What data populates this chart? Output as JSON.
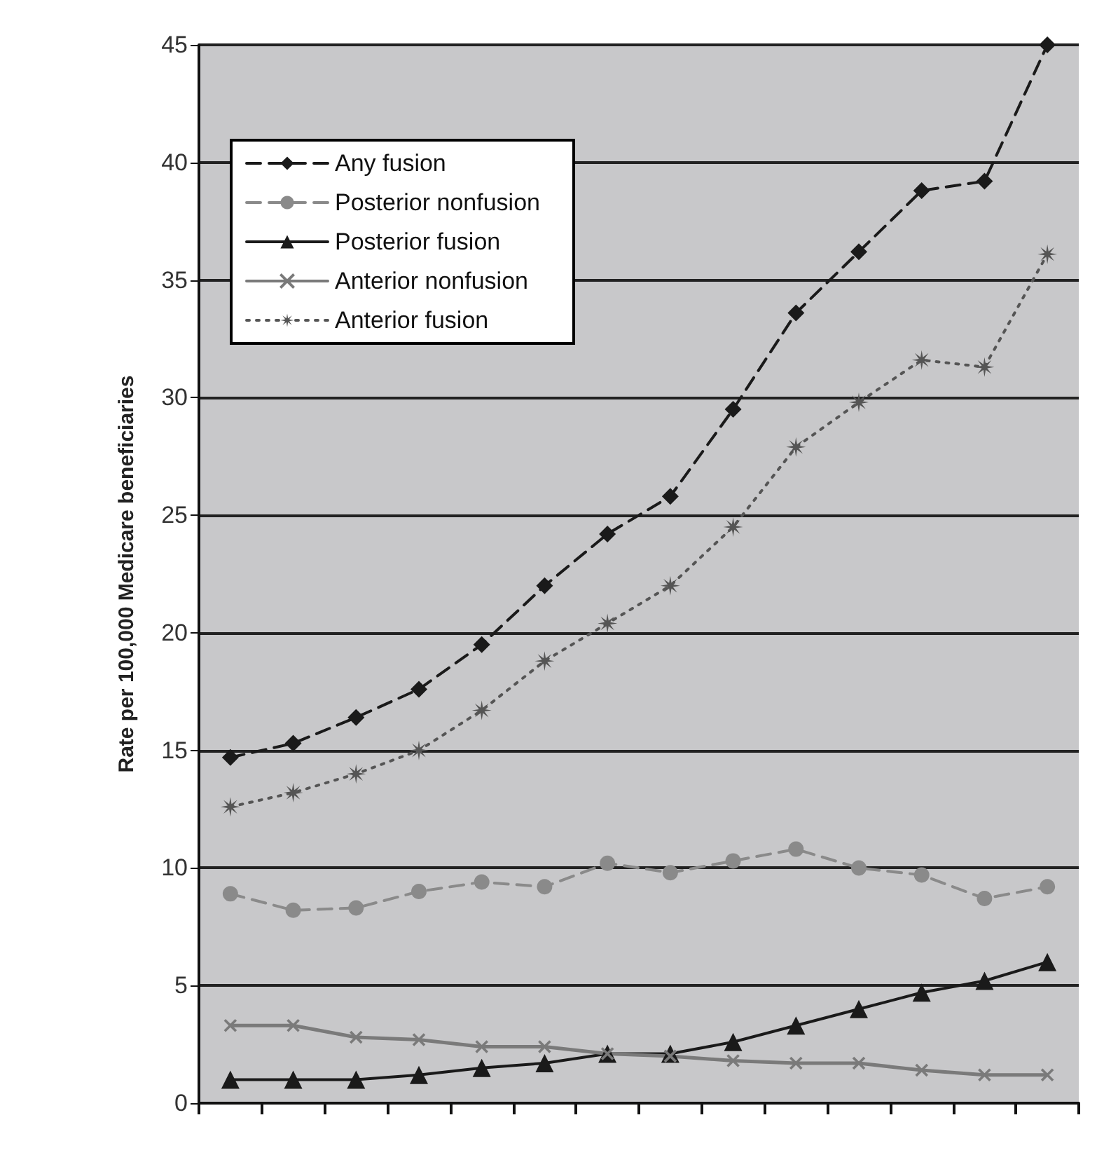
{
  "chart_data": {
    "type": "line",
    "ylabel": "Rate per 100,000 Medicare beneficiaries",
    "categories": [
      null,
      null,
      null,
      null,
      null,
      null,
      null,
      null,
      null,
      null,
      null,
      null,
      null,
      null
    ],
    "series": [
      {
        "name": "Any fusion",
        "color": "#1a1a1a",
        "marker": "diamond",
        "line_style": "dashed",
        "values": [
          14.7,
          15.3,
          16.4,
          17.6,
          19.5,
          22.0,
          24.2,
          25.8,
          29.5,
          33.6,
          36.2,
          38.8,
          39.2,
          45.0
        ]
      },
      {
        "name": "Posterior nonfusion",
        "color": "#8a8a8a",
        "marker": "circle",
        "line_style": "dashed",
        "values": [
          8.9,
          8.2,
          8.3,
          9.0,
          9.4,
          9.2,
          10.2,
          9.8,
          10.3,
          10.8,
          10.0,
          9.7,
          8.7,
          9.2
        ]
      },
      {
        "name": "Posterior fusion",
        "color": "#1a1a1a",
        "marker": "triangle",
        "line_style": "solid",
        "values": [
          1.0,
          1.0,
          1.0,
          1.2,
          1.5,
          1.7,
          2.1,
          2.1,
          2.6,
          3.3,
          4.0,
          4.7,
          5.2,
          6.0
        ]
      },
      {
        "name": "Anterior nonfusion",
        "color": "#7a7a7a",
        "marker": "cross",
        "line_style": "solid",
        "values": [
          3.3,
          3.3,
          2.8,
          2.7,
          2.4,
          2.4,
          2.1,
          2.0,
          1.8,
          1.7,
          1.7,
          1.4,
          1.2,
          1.2
        ]
      },
      {
        "name": "Anterior fusion",
        "color": "#555555",
        "marker": "star",
        "line_style": "dotted",
        "values": [
          12.6,
          13.2,
          14.0,
          15.0,
          16.7,
          18.8,
          20.4,
          22.0,
          24.5,
          27.9,
          29.8,
          31.6,
          31.3,
          36.1
        ]
      }
    ],
    "ylim": [
      0,
      45
    ],
    "yticks": [
      0,
      5,
      10,
      15,
      20,
      25,
      30,
      35,
      40,
      45
    ],
    "grid": "y",
    "legend": "top left",
    "tick_labels": "y"
  }
}
